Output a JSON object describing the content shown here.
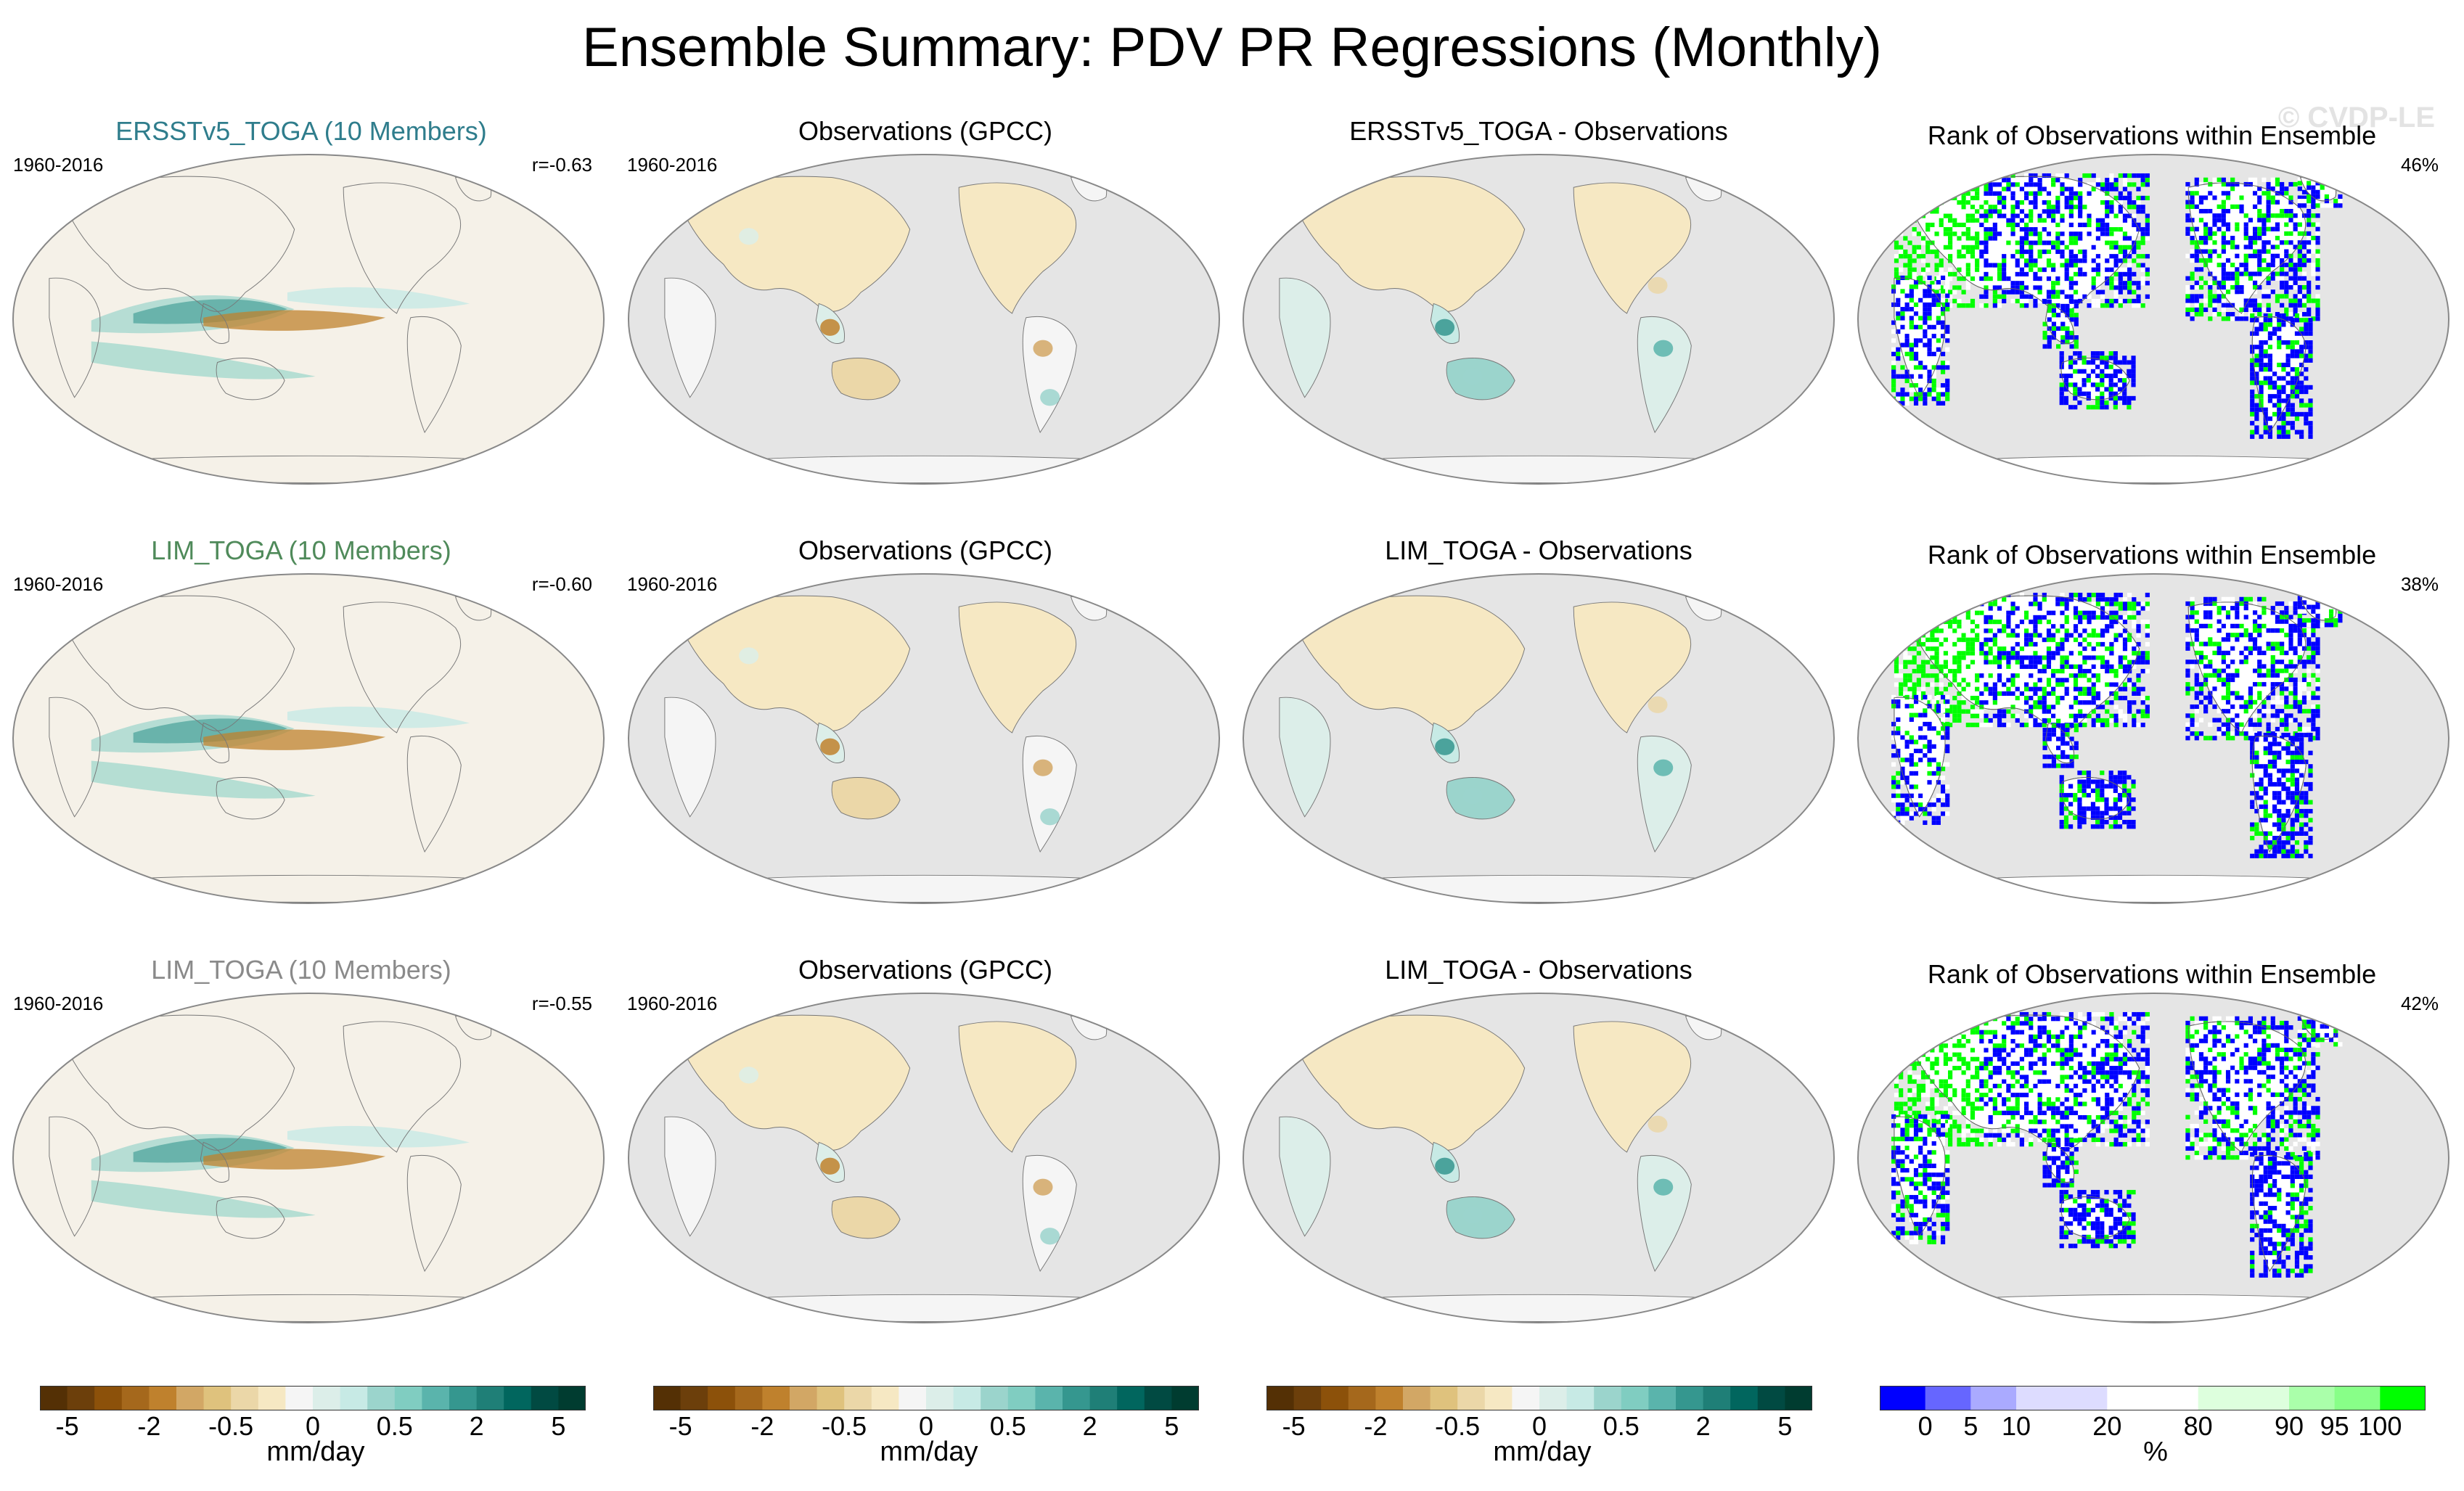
{
  "title": "Ensemble Summary: PDV PR Regressions (Monthly)",
  "watermark": "© CVDP-LE",
  "rows": [
    {
      "ensemble": {
        "title": "ERSSTv5_TOGA (10 Members)",
        "title_color": "#2f7d8c",
        "period": "1960-2016",
        "corr": "r=-0.63"
      },
      "obs": {
        "title": "Observations (GPCC)",
        "period": "1960-2016"
      },
      "diff": {
        "title": "ERSSTv5_TOGA - Observations"
      },
      "rank": {
        "title": "Rank of Observations within Ensemble",
        "percent": "46%"
      }
    },
    {
      "ensemble": {
        "title": "LIM_TOGA (10 Members)",
        "title_color": "#4f8a5a",
        "period": "1960-2016",
        "corr": "r=-0.60"
      },
      "obs": {
        "title": "Observations (GPCC)",
        "period": "1960-2016"
      },
      "diff": {
        "title": "LIM_TOGA - Observations"
      },
      "rank": {
        "title": "Rank of Observations within Ensemble",
        "percent": "38%"
      }
    },
    {
      "ensemble": {
        "title": "LIM_TOGA (10 Members)",
        "title_color": "#8a8a8a",
        "period": "1960-2016",
        "corr": "r=-0.55"
      },
      "obs": {
        "title": "Observations (GPCC)",
        "period": "1960-2016"
      },
      "diff": {
        "title": "LIM_TOGA - Observations"
      },
      "rank": {
        "title": "Rank of Observations within Ensemble",
        "percent": "42%"
      }
    }
  ],
  "precip_colorbar": {
    "colors": [
      "#543005",
      "#6c3f0b",
      "#8c510a",
      "#a5681c",
      "#bf812d",
      "#d2a765",
      "#dfc27d",
      "#ebd7a8",
      "#f6e8c3",
      "#f5f5f5",
      "#dceee9",
      "#c7eae5",
      "#9bd4cc",
      "#80cdc1",
      "#5ab4ac",
      "#35978f",
      "#1f7f77",
      "#01665e",
      "#014a42",
      "#003c30"
    ],
    "labels": [
      "-5",
      "-2",
      "-0.5",
      "0",
      "0.5",
      "2",
      "5"
    ],
    "label_positions": [
      1,
      4,
      7,
      10,
      13,
      16,
      19
    ],
    "unit": "mm/day"
  },
  "rank_colorbar": {
    "colors": [
      "#0000ff",
      "#6666ff",
      "#aaaaff",
      "#dddcff",
      "#dddcff",
      "#ffffff",
      "#ffffff",
      "#ddffdd",
      "#ddffdd",
      "#aaffaa",
      "#88ff88",
      "#00ff00"
    ],
    "labels": [
      "0",
      "5",
      "10",
      "20",
      "80",
      "90",
      "95",
      "100"
    ],
    "label_positions": [
      1,
      2,
      3,
      5,
      7,
      9,
      10,
      11
    ],
    "unit": "%"
  },
  "colors": {
    "ocean_gray": "#e5e5e5",
    "model_background": "#f5f1e8",
    "rank_blue": "#0000ff",
    "rank_green": "#00ff00"
  }
}
